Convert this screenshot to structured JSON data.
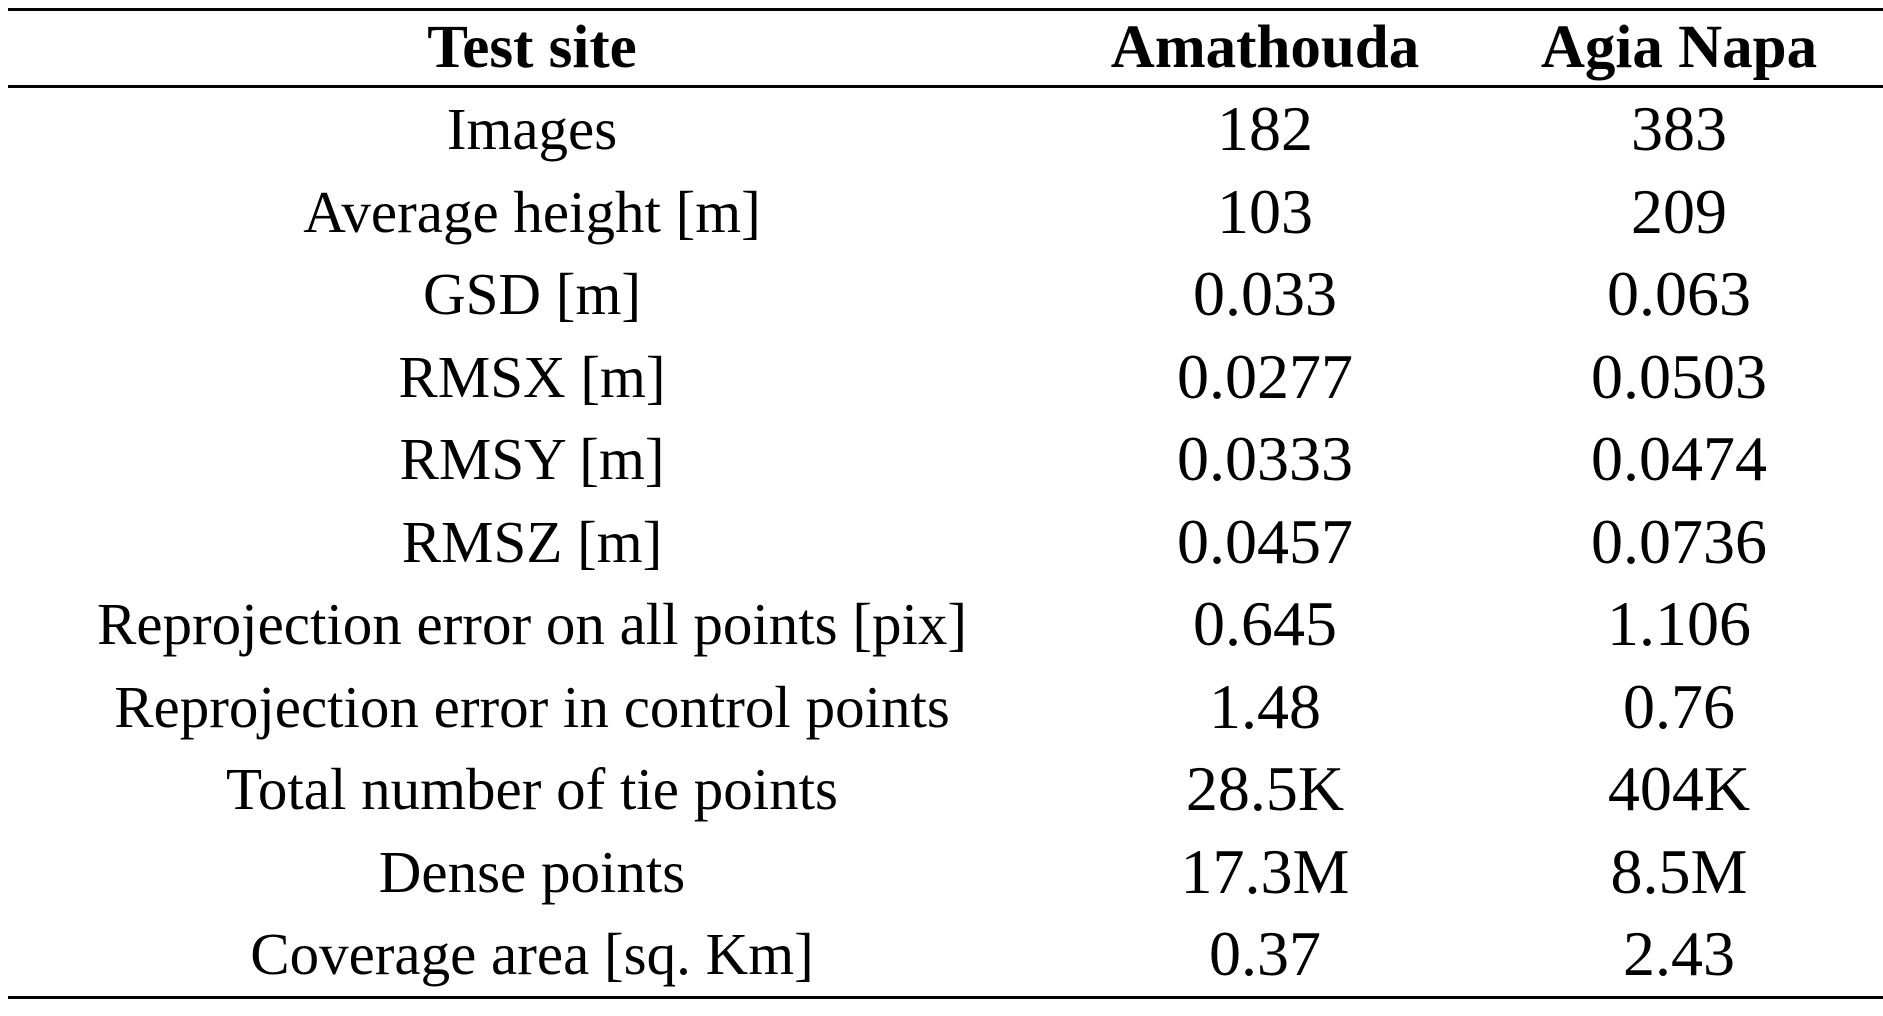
{
  "table": {
    "headers": [
      "Test site",
      "Amathouda",
      "Agia Napa"
    ],
    "rows": [
      [
        "Images",
        "182",
        "383"
      ],
      [
        "Average height [m]",
        "103",
        "209"
      ],
      [
        "GSD [m]",
        "0.033",
        "0.063"
      ],
      [
        "RMSX [m]",
        "0.0277",
        "0.0503"
      ],
      [
        "RMSY [m]",
        "0.0333",
        "0.0474"
      ],
      [
        "RMSZ [m]",
        "0.0457",
        "0.0736"
      ],
      [
        "Reprojection error on all points [pix]",
        "0.645",
        "1.106"
      ],
      [
        "Reprojection error in control points",
        "1.48",
        "0.76"
      ],
      [
        "Total number of tie points",
        "28.5K",
        "404K"
      ],
      [
        "Dense points",
        "17.3M",
        "8.5M"
      ],
      [
        "Coverage area [sq. Km]",
        "0.37",
        "2.43"
      ]
    ]
  }
}
